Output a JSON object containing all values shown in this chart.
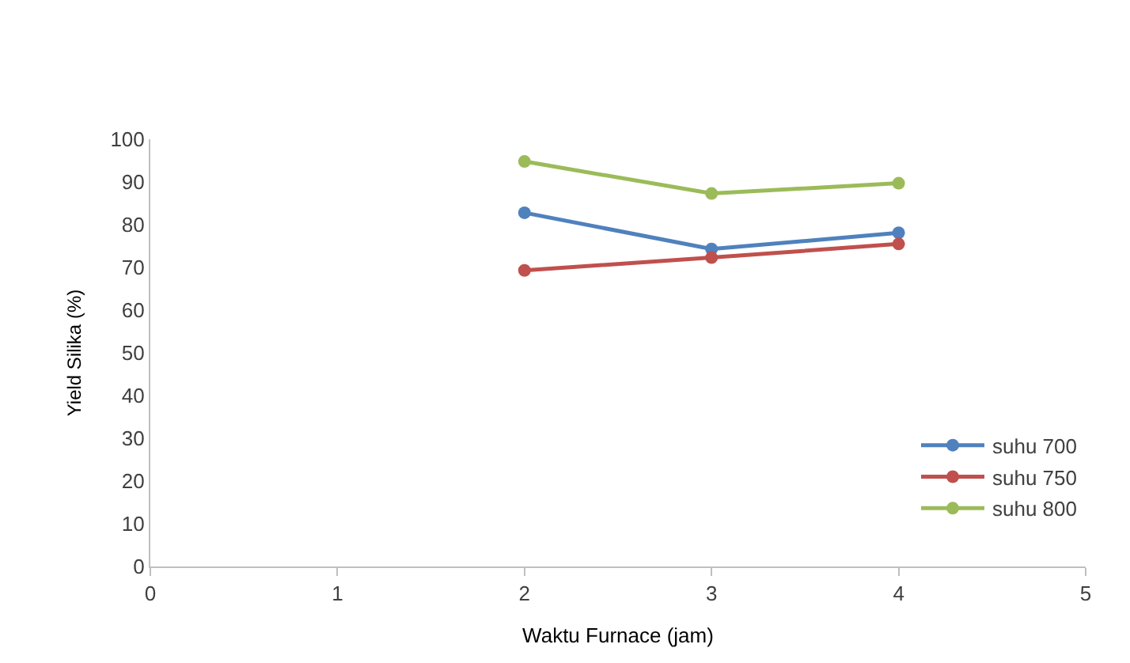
{
  "chart_data": {
    "type": "line",
    "xlabel": "Waktu Furnace (jam)",
    "ylabel": "Yield Silika (%)",
    "x": [
      2,
      3,
      4
    ],
    "series": [
      {
        "name": "suhu 700",
        "color": "#4f81bd",
        "values": [
          82.8,
          74.3,
          78.1
        ]
      },
      {
        "name": "suhu 750",
        "color": "#c0504d",
        "values": [
          69.3,
          72.3,
          75.5
        ]
      },
      {
        "name": "suhu 800",
        "color": "#9bbb59",
        "values": [
          94.8,
          87.3,
          89.7
        ]
      }
    ],
    "xlim": [
      0,
      5
    ],
    "xticks": [
      0,
      1,
      2,
      3,
      4,
      5
    ],
    "ylim": [
      0,
      100
    ],
    "yticks": [
      0,
      10,
      20,
      30,
      40,
      50,
      60,
      70,
      80,
      90,
      100
    ],
    "grid": false,
    "legend": "bottom right",
    "marker": "circle",
    "line_style": "solid"
  }
}
